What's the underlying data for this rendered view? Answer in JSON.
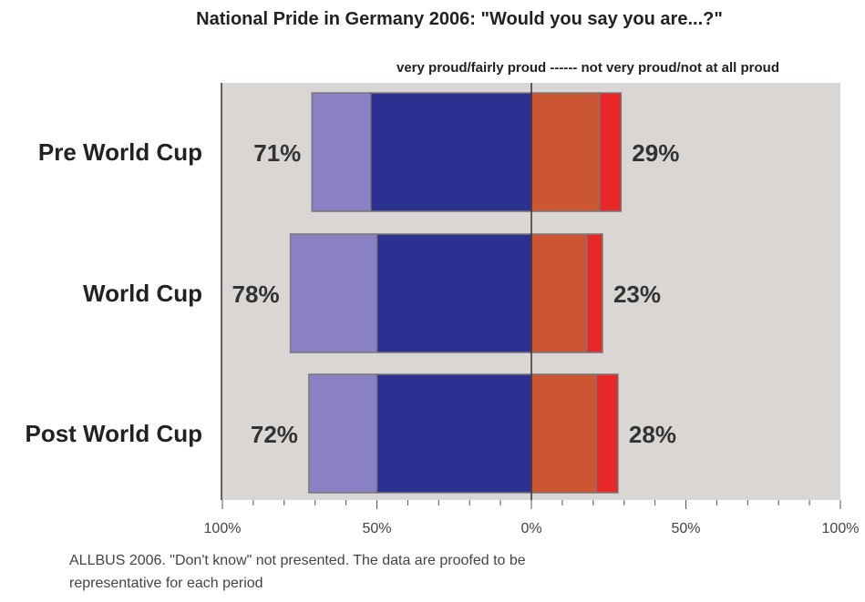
{
  "chart_data": {
    "type": "bar",
    "title": "National Pride in Germany 2006:  \"Would you say you are...?\"",
    "subtitle": "very proud/fairly proud ------  not very proud/not at all proud",
    "categories": [
      "Pre World Cup",
      "World Cup",
      "Post World Cup"
    ],
    "series": [
      {
        "name": "very proud",
        "values": [
          52,
          50,
          50
        ],
        "color": "#2c3090"
      },
      {
        "name": "fairly proud",
        "values": [
          19,
          28,
          22
        ],
        "color": "#8a82c4"
      },
      {
        "name": "not very proud",
        "values": [
          22,
          18,
          21
        ],
        "color": "#cc5533"
      },
      {
        "name": "not at all proud",
        "values": [
          7,
          5,
          7
        ],
        "color": "#e82828"
      }
    ],
    "left_totals": [
      "71%",
      "78%",
      "72%"
    ],
    "right_totals": [
      "29%",
      "23%",
      "28%"
    ],
    "xlim": [
      -100,
      100
    ],
    "tick_labels": [
      "100%",
      "50%",
      "0%",
      "50%",
      "100%"
    ],
    "note_lines": [
      "ALLBUS 2006. \"Don't know\" not presented. The data are proofed to be",
      "representative for each period"
    ],
    "colors": {
      "plot_background": "#dad6d3",
      "bar_outline": "#777777"
    }
  }
}
